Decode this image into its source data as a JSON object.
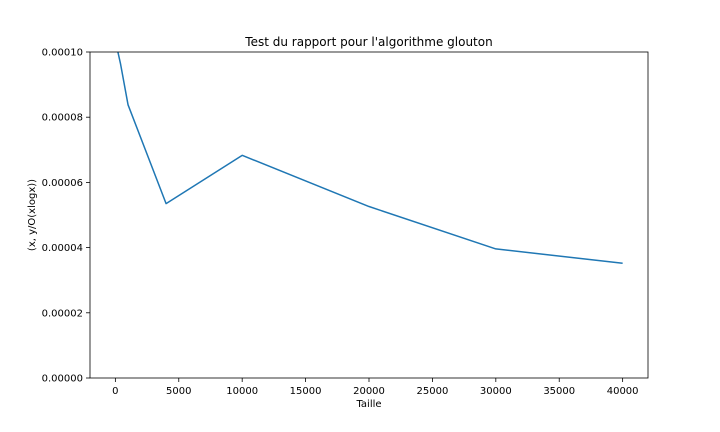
{
  "chart_data": {
    "type": "line",
    "title": "Test du rapport pour l'algorithme glouton",
    "xlabel": "Taille",
    "ylabel": "(x, y/O(xlogx))",
    "xlim": [
      -2000,
      42000
    ],
    "ylim": [
      0,
      0.0001
    ],
    "x_ticks": [
      0,
      5000,
      10000,
      15000,
      20000,
      25000,
      30000,
      35000,
      40000
    ],
    "x_tick_labels": [
      "0",
      "5000",
      "10000",
      "15000",
      "20000",
      "25000",
      "30000",
      "35000",
      "40000"
    ],
    "y_ticks": [
      0,
      2e-05,
      4e-05,
      6e-05,
      8e-05,
      0.0001
    ],
    "y_tick_labels": [
      "0.00000",
      "0.00002",
      "0.00004",
      "0.00006",
      "0.00008",
      "0.00010"
    ],
    "grid": false,
    "series": [
      {
        "color": "#1f77b4",
        "x": [
          200,
          400,
          1000,
          4000,
          10000,
          20000,
          30000,
          40000
        ],
        "y": [
          0.0001,
          9.65e-05,
          8.38e-05,
          5.35e-05,
          6.83e-05,
          5.26e-05,
          3.96e-05,
          3.52e-05
        ]
      }
    ]
  }
}
